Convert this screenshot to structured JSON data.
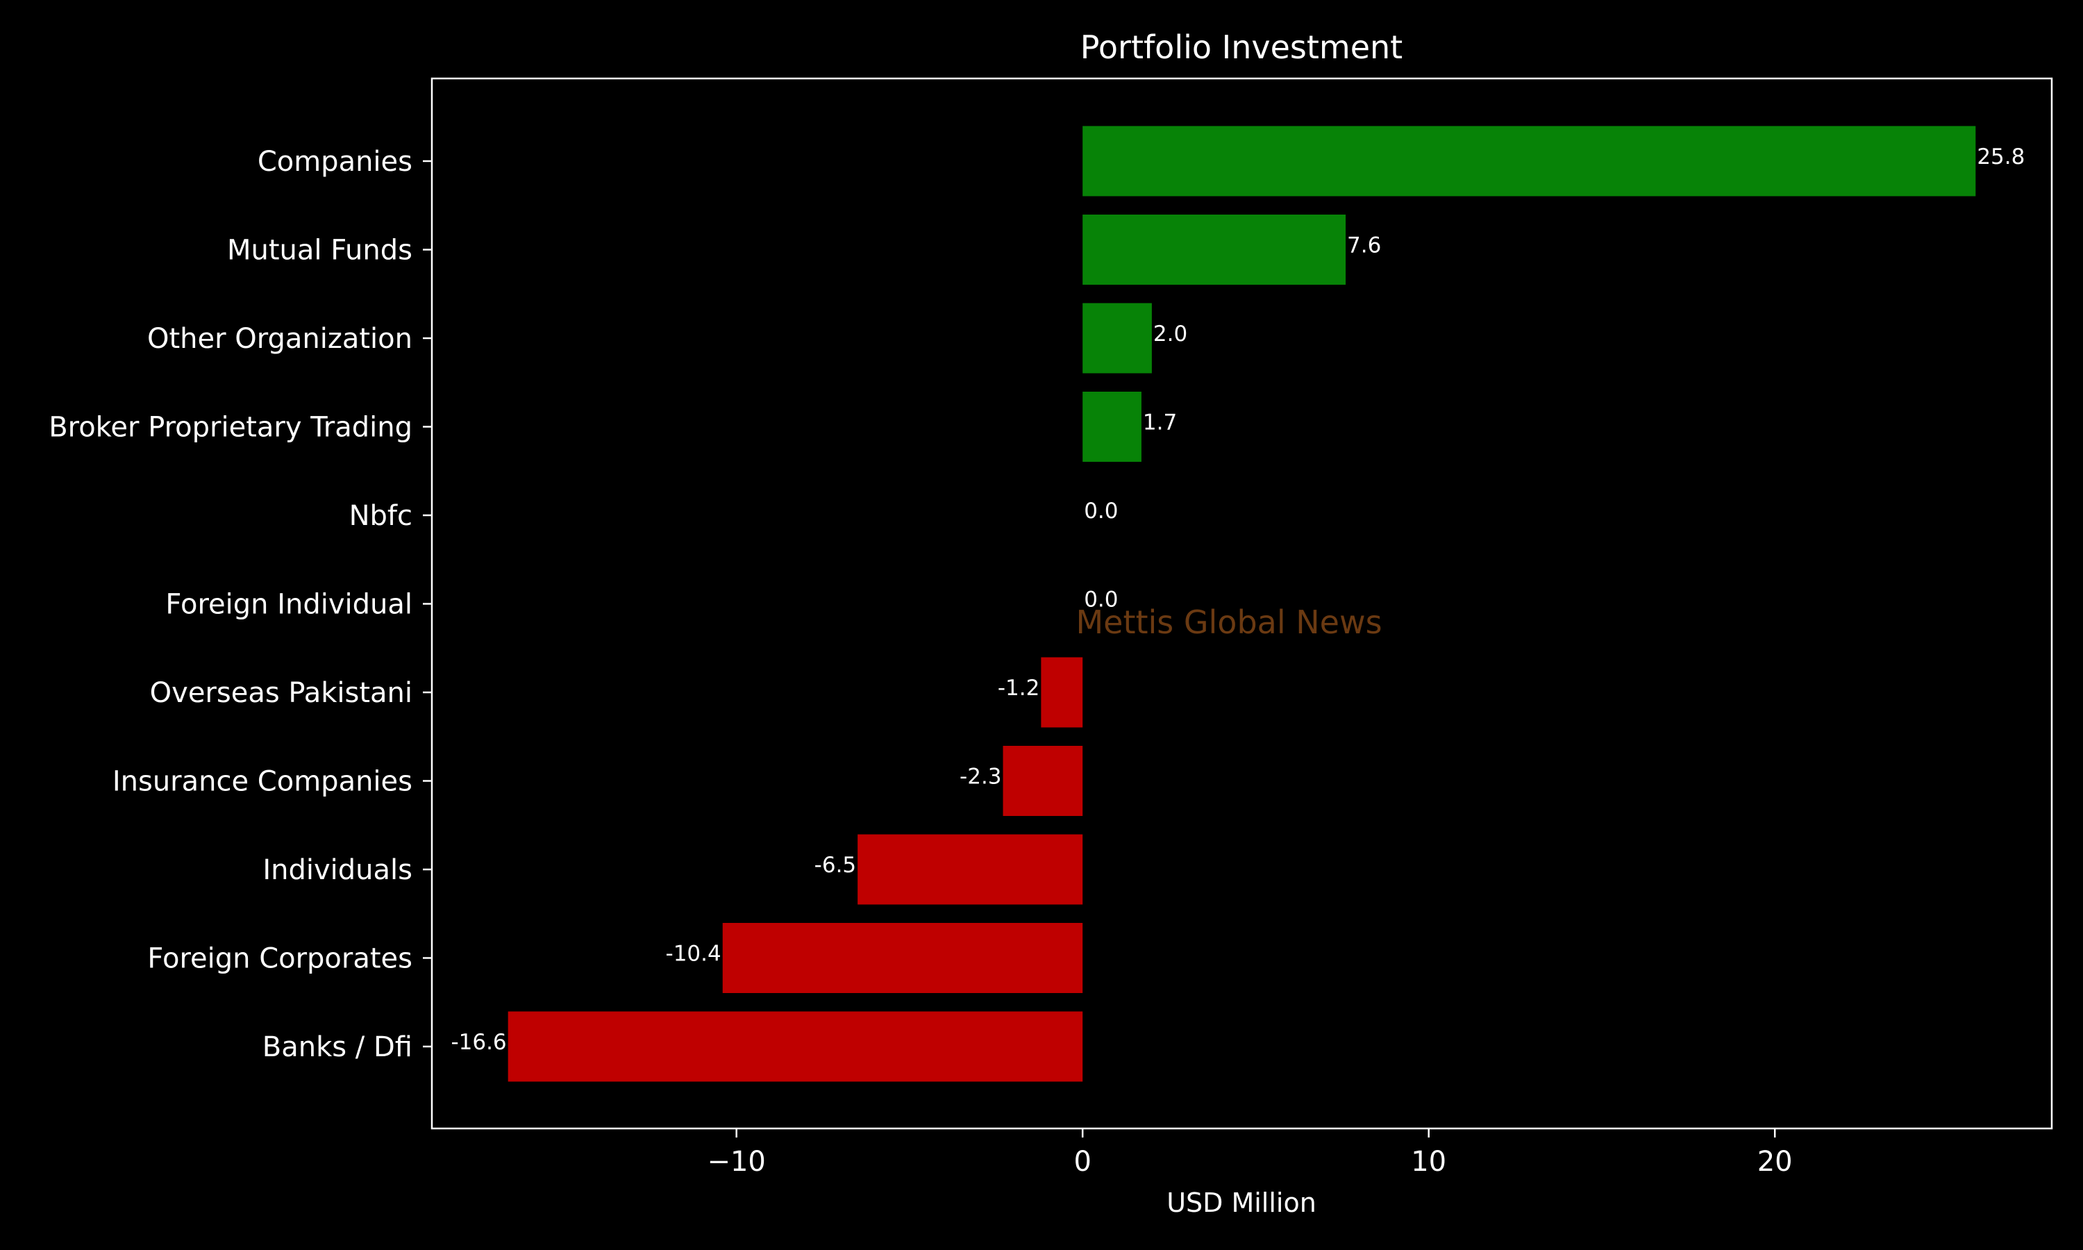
{
  "chart_data": {
    "type": "bar",
    "orientation": "horizontal",
    "title": "Portfolio Investment",
    "xlabel": "USD Million",
    "ylabel": "",
    "xlim": [
      -18.8,
      28.0
    ],
    "xticks": [
      -10,
      0,
      10,
      20
    ],
    "xtick_labels": [
      "−10",
      "0",
      "10",
      "20"
    ],
    "categories": [
      "Companies",
      "Mutual Funds",
      "Other Organization",
      "Broker Proprietary Trading",
      "Nbfc",
      "Foreign Individual",
      "Overseas Pakistani",
      "Insurance Companies",
      "Individuals",
      "Foreign Corporates ",
      "Banks / Dfi"
    ],
    "values": [
      25.8,
      7.6,
      2.0,
      1.7,
      0.0,
      0.0,
      -1.2,
      -2.3,
      -6.5,
      -10.4,
      -16.6
    ],
    "data_labels": [
      "25.8",
      "7.6",
      "2.0",
      "1.7",
      "0.0",
      "0.0",
      "-1.2",
      "-2.3",
      "-6.5",
      "-10.4",
      "-16.6"
    ],
    "colors": {
      "positive": "#078307",
      "negative": "#bf0000",
      "background": "#000000",
      "text": "#ffffff",
      "watermark": "#6b3a12"
    },
    "grid": false,
    "legend": "none",
    "watermark": "Mettis Global News"
  }
}
